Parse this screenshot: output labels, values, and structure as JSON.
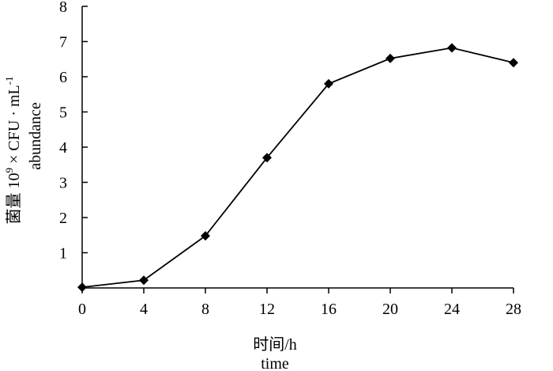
{
  "chart_data": {
    "type": "line",
    "title": "",
    "x": [
      0,
      4,
      8,
      12,
      16,
      20,
      24,
      28
    ],
    "series": [
      {
        "values": [
          0.02,
          0.22,
          1.48,
          3.7,
          5.8,
          6.52,
          6.82,
          6.4
        ]
      }
    ],
    "xlim": [
      0,
      28
    ],
    "ylim": [
      0,
      8
    ],
    "x_ticks": [
      "0",
      "4",
      "8",
      "12",
      "16",
      "20",
      "24",
      "28"
    ],
    "y_ticks": [
      "1",
      "2",
      "3",
      "4",
      "5",
      "6",
      "7",
      "8"
    ],
    "xlabel_line1": "时间/h",
    "xlabel_line2": "time",
    "ylabel_line1_prefix": "菌量 10",
    "ylabel_line1_sup1": "9",
    "ylabel_line1_mid": " × CFU · mL",
    "ylabel_line1_sup2": "-1",
    "ylabel_line2": "abundance",
    "grid": false,
    "legend": "none",
    "marker": "diamond",
    "line_color": "#000000"
  }
}
